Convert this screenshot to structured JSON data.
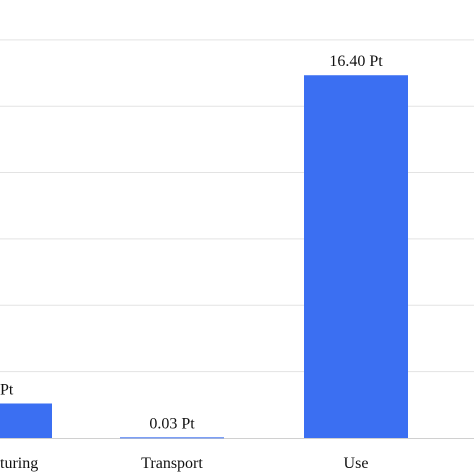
{
  "chart_data": {
    "type": "bar",
    "categories": [
      "turing",
      "Transport",
      "Use"
    ],
    "values": [
      1.56,
      0.03,
      16.4
    ],
    "data_labels": [
      "Pt",
      "0.03 Pt",
      "16.40 Pt"
    ],
    "ylim": [
      0,
      18
    ],
    "grid": true,
    "colors": {
      "bar": "#3b6ff2",
      "grid": "#e3e3e3",
      "axis": "#d0d0d0"
    }
  }
}
